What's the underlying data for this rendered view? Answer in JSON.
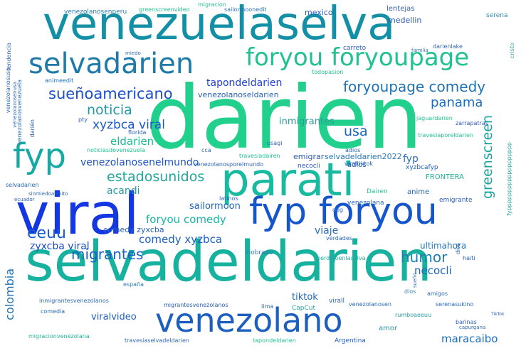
{
  "words": [
    {
      "id": "darien",
      "text": "darien",
      "color": "#22c98d"
    },
    {
      "id": "venezuelaselva",
      "text": "venezuelaselva",
      "color": "#138ca3"
    },
    {
      "id": "selvadeldarien",
      "text": "selvadeldarien",
      "color": "#16b1a0"
    },
    {
      "id": "viral",
      "text": "viral",
      "color": "#1736e0"
    },
    {
      "id": "parati",
      "text": "parati",
      "color": "#19b8a0"
    },
    {
      "id": "venezolano",
      "text": "venezolano",
      "color": "#1d5fc0"
    },
    {
      "id": "fyp-foryou",
      "text": "fyp foryou",
      "color": "#1657cc"
    },
    {
      "id": "selvadarien",
      "text": "selvadarien",
      "color": "#207aa7"
    },
    {
      "id": "foryou-foryoupage",
      "text": "foryou foryoupage",
      "color": "#20c090"
    },
    {
      "id": "fyp",
      "text": "fyp",
      "color": "#16a9a5"
    },
    {
      "id": "suenoamericano",
      "text": "sueñoamericano",
      "color": "#1b4fc9"
    },
    {
      "id": "foryoupage-comedy",
      "text": "foryoupage comedy",
      "color": "#1d72b4"
    },
    {
      "id": "noticia",
      "text": "noticia",
      "color": "#1f9aa8"
    },
    {
      "id": "tapondeldarien",
      "text": "tapondeldarien",
      "color": "#1f3fd4"
    },
    {
      "id": "venezolanoseldarien",
      "text": "venezolanoseldarien",
      "color": "#2660b5"
    },
    {
      "id": "panama",
      "text": "panama",
      "color": "#1a6cbf"
    },
    {
      "id": "xyzbca-viral",
      "text": "xyzbca viral",
      "color": "#1958c6"
    },
    {
      "id": "inmigrantes",
      "text": "inmigrantes",
      "color": "#2c9c9a"
    },
    {
      "id": "usa",
      "text": "usa",
      "color": "#1864c6"
    },
    {
      "id": "eldarien",
      "text": "eldarien",
      "color": "#1cbb92"
    },
    {
      "id": "greenscreen",
      "text": "greenscreen",
      "color": "#1aa39e"
    },
    {
      "id": "venezolanoseneelmundo",
      "text": "venezolanosenelmundo",
      "color": "#1d52c2"
    },
    {
      "id": "estadosunidos",
      "text": "estadosunidos",
      "color": "#21a89b"
    },
    {
      "id": "fyp-small",
      "text": "fyp",
      "color": "#2a6fc0"
    },
    {
      "id": "acandi",
      "text": "acandi",
      "color": "#2a9ba0"
    },
    {
      "id": "eeuu",
      "text": "eeuu",
      "color": "#1b5ed0"
    },
    {
      "id": "foryou-comedy",
      "text": "foryou comedy",
      "color": "#16b4a4"
    },
    {
      "id": "sailormoon",
      "text": "sailormoon",
      "color": "#1d66c0"
    },
    {
      "id": "humor",
      "text": "humor",
      "color": "#1c7fb2"
    },
    {
      "id": "necocli",
      "text": "necocli",
      "color": "#1e65c2"
    },
    {
      "id": "migrantes",
      "text": "migrantes",
      "color": "#1a61c5"
    },
    {
      "id": "comedy-xyzbca",
      "text": "comedy xyzbca",
      "color": "#1e60c1"
    },
    {
      "id": "zyxcba-viral",
      "text": "zyxcba viral",
      "color": "#194bd0"
    },
    {
      "id": "colombia",
      "text": "colombia",
      "color": "#1e74b5"
    },
    {
      "id": "viaje",
      "text": "viaje",
      "color": "#2a6fb9"
    },
    {
      "id": "comedy-zyxcba",
      "text": "comedy zyxcba",
      "color": "#2860b8"
    },
    {
      "id": "viralvideo",
      "text": "viralvideo",
      "color": "#1f5dbf"
    },
    {
      "id": "selvadelarien-2022",
      "text": "selvadeldarien2022",
      "color": "#2779b6"
    },
    {
      "id": "emigrar",
      "text": "emigrar",
      "color": "#2a5ab8"
    },
    {
      "id": "ultimahora",
      "text": "ultimahora",
      "color": "#2576b7"
    },
    {
      "id": "tiktok",
      "text": "tiktok",
      "color": "#1d66b9"
    },
    {
      "id": "maracaibo",
      "text": "maracaibo",
      "color": "#1e6fbd"
    },
    {
      "id": "mexico",
      "text": "mexico",
      "color": "#2a5ec0"
    },
    {
      "id": "medellin",
      "text": "medellin",
      "color": "#2b57b9"
    },
    {
      "id": "lentejas",
      "text": "lentejas",
      "color": "#3460b0"
    },
    {
      "id": "venezolanosenperu",
      "text": "venezolanosenperu",
      "color": "#2b7db0"
    },
    {
      "id": "greenscreenvideo",
      "text": "greenscreenvideo",
      "color": "#22c08e"
    },
    {
      "id": "sailormoonedit",
      "text": "sailormoonedit",
      "color": "#2a74b8"
    },
    {
      "id": "migracion",
      "text": "migracion",
      "color": "#28b896"
    },
    {
      "id": "darienlake",
      "text": "darienlake",
      "color": "#3065b5"
    },
    {
      "id": "carreto",
      "text": "carreto",
      "color": "#2b58bd"
    },
    {
      "id": "familia",
      "text": "familia",
      "color": "#3a7ab0"
    },
    {
      "id": "serena",
      "text": "serena",
      "color": "#2f8ea8"
    },
    {
      "id": "animeedit",
      "text": "animeedit",
      "color": "#1f6fbc"
    },
    {
      "id": "frontera",
      "text": "FRONTERA",
      "color": "#23b197"
    },
    {
      "id": "adios",
      "text": "adios",
      "color": "#1e58c0"
    },
    {
      "id": "anime",
      "text": "anime",
      "color": "#2969b6"
    },
    {
      "id": "latinos",
      "text": "latinos",
      "color": "#2a68b8"
    },
    {
      "id": "venezolana",
      "text": "venezolana",
      "color": "#2361bc"
    },
    {
      "id": "emigrante",
      "text": "emigrante",
      "color": "#2d5cb7"
    },
    {
      "id": "dog",
      "text": "dog",
      "color": "#2970ba"
    },
    {
      "id": "amor",
      "text": "amor",
      "color": "#2d96a6"
    },
    {
      "id": "argentina",
      "text": "Argentina",
      "color": "#1f5ec0"
    },
    {
      "id": "florida",
      "text": "florida",
      "color": "#2a5fbb"
    },
    {
      "id": "travesiadairen",
      "text": "travesiadairen",
      "color": "#22c192"
    },
    {
      "id": "necocli-small",
      "text": "necocli",
      "color": "#2958bb"
    },
    {
      "id": "lima",
      "text": "lima",
      "color": "#2d66b4"
    },
    {
      "id": "virall",
      "text": "virall",
      "color": "#2b62b9"
    },
    {
      "id": "venezolanosen",
      "text": "venezolanosen",
      "color": "#2a6ab8"
    },
    {
      "id": "capcut",
      "text": "CapCut",
      "color": "#2aa5a0"
    },
    {
      "id": "dios",
      "text": "dios",
      "color": "#3a84ae"
    },
    {
      "id": "espana",
      "text": "españa",
      "color": "#2d7db3"
    },
    {
      "id": "comedia",
      "text": "comedia",
      "color": "#2a6cb8"
    },
    {
      "id": "barinas",
      "text": "barinas",
      "color": "#2c5fb7"
    },
    {
      "id": "capurgana",
      "text": "capurgana",
      "color": "#2f6ab2"
    },
    {
      "id": "haiti",
      "text": "haiti",
      "color": "#2a65b6"
    },
    {
      "id": "dairen",
      "text": "Dairen",
      "color": "#22c195"
    },
    {
      "id": "zarrapatras",
      "text": "zarrapatras",
      "color": "#2e5cb8"
    },
    {
      "id": "viraltiktok",
      "text": "viraltiktok",
      "color": "#2c66b7"
    },
    {
      "id": "xyzbcafyp",
      "text": "xyzbcafyp",
      "color": "#1e60c0"
    },
    {
      "id": "riobravo",
      "text": "riobravo",
      "color": "#2f78b0"
    },
    {
      "id": "verdades",
      "text": "verdades",
      "color": "#2e6ab4"
    },
    {
      "id": "perdidoenlaselva",
      "text": "perdidoenlaselva",
      "color": "#2aa89e"
    },
    {
      "id": "amigos",
      "text": "amigos",
      "color": "#2f6bb3"
    },
    {
      "id": "usagi",
      "text": "usagi",
      "color": "#2f69b5"
    },
    {
      "id": "migrantesvenezolanos",
      "text": "migrantesvenezolanos",
      "color": "#2d5fb6"
    },
    {
      "id": "inmigrantesvenezolanos",
      "text": "inmigrantesvenezolanos",
      "color": "#2b6ab8"
    },
    {
      "id": "migracionvenezolana",
      "text": "migracionvenezolana",
      "color": "#22b596"
    },
    {
      "id": "travesiaselvadeldarien",
      "text": "travesiaselvadeldarien",
      "color": "#2e67b4"
    },
    {
      "id": "tapondeldarien-small",
      "text": "tapondeldarien",
      "color": "#22bf93"
    },
    {
      "id": "rumboaeeuu",
      "text": "rumboaeeuu",
      "color": "#2a9aa4"
    },
    {
      "id": "venezolanosporelmundo",
      "text": "venezolanosporelmundo",
      "color": "#2c62b6"
    },
    {
      "id": "noticiasdevenezuela",
      "text": "noticiasdevenezuela",
      "color": "#23c193"
    },
    {
      "id": "travesiaporeldarien",
      "text": "travesiaporeldarien",
      "color": "#22c092"
    },
    {
      "id": "jaguardarien",
      "text": "jaguardarien",
      "color": "#23c291"
    },
    {
      "id": "todopasion",
      "text": "todopasion",
      "color": "#25bb93"
    },
    {
      "id": "tendencia",
      "text": "tendencia",
      "color": "#2d63b5"
    },
    {
      "id": "venezolanosusa",
      "text": "venezolanosusa",
      "color": "#2c6cb5"
    },
    {
      "id": "venezolanosvenezuela",
      "text": "venezolanosvenezuela",
      "color": "#2a6db7"
    },
    {
      "id": "pty",
      "text": "pty",
      "color": "#3162b4"
    },
    {
      "id": "miedo",
      "text": "miedo",
      "color": "#3169b2"
    },
    {
      "id": "cristo",
      "text": "cristo",
      "color": "#39a9a0"
    },
    {
      "id": "ultimahora-v",
      "text": "dios",
      "color": "#2f6cb5"
    },
    {
      "id": "ecuador",
      "text": "ecuador",
      "color": "#2f6ab3"
    },
    {
      "id": "serenasukino",
      "text": "serenasukino",
      "color": "#2a6bb6"
    },
    {
      "id": "sinmiedoalexito",
      "text": "sinmiedoalexito",
      "color": "#2b61b6"
    },
    {
      "id": "selvadarien-small",
      "text": "selvadarien",
      "color": "#2a66b7"
    },
    {
      "id": "cca",
      "text": "cca",
      "color": "#2e6cb4"
    },
    {
      "id": "venezolanosenperu-v",
      "text": "venezolanosenusa",
      "color": "#2b66b6"
    },
    {
      "id": "darien-v",
      "text": "darién",
      "color": "#2c62b5"
    },
    {
      "id": "sueno",
      "text": "sueño",
      "color": "#2f6cb3"
    },
    {
      "id": "fypppp",
      "text": "fyppppppppppppppppppp",
      "color": "#2fa59e"
    },
    {
      "id": "adios-small",
      "text": "adios",
      "color": "#2d67b4"
    },
    {
      "id": "tiktok-small",
      "text": "TikTok",
      "color": "#3160b3"
    }
  ]
}
